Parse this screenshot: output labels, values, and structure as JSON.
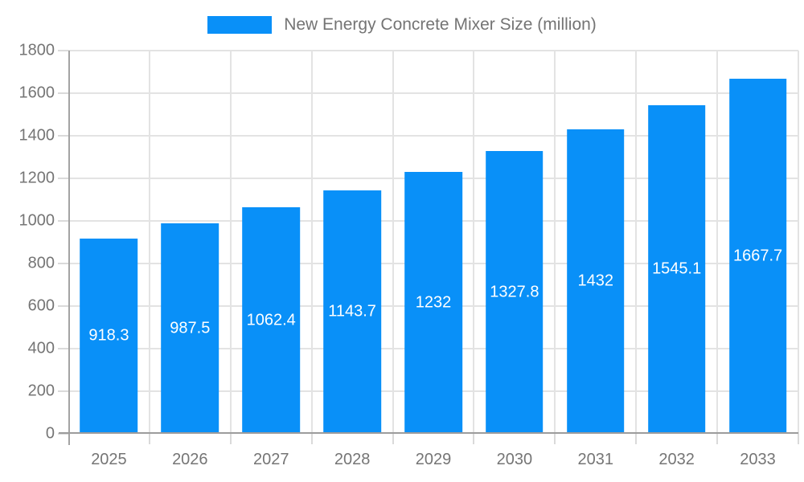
{
  "chart_data": {
    "type": "bar",
    "title": "New Energy Concrete Mixer Size (million)",
    "categories": [
      "2025",
      "2026",
      "2027",
      "2028",
      "2029",
      "2030",
      "2031",
      "2032",
      "2033"
    ],
    "values": [
      918.3,
      987.5,
      1062.4,
      1143.7,
      1232,
      1327.8,
      1432,
      1545.1,
      1667.7
    ],
    "series": [
      {
        "name": "New Energy Concrete Mixer Size (million)",
        "values": [
          918.3,
          987.5,
          1062.4,
          1143.7,
          1232,
          1327.8,
          1432,
          1545.1,
          1667.7
        ]
      }
    ],
    "xlabel": "",
    "ylabel": "",
    "ylim": [
      0,
      1800
    ],
    "y_ticks": [
      0,
      200,
      400,
      600,
      800,
      1000,
      1200,
      1400,
      1600,
      1800
    ],
    "grid": "on",
    "legend_position": "top-center",
    "bar_color": "#0990f8",
    "colors": {
      "bar": "#0990f8",
      "value_label": "#ffffff",
      "axis_text": "#757575",
      "legend_text": "#747474",
      "gridline": "#e3e3e3",
      "axis_line": "#9c9c9c"
    }
  }
}
